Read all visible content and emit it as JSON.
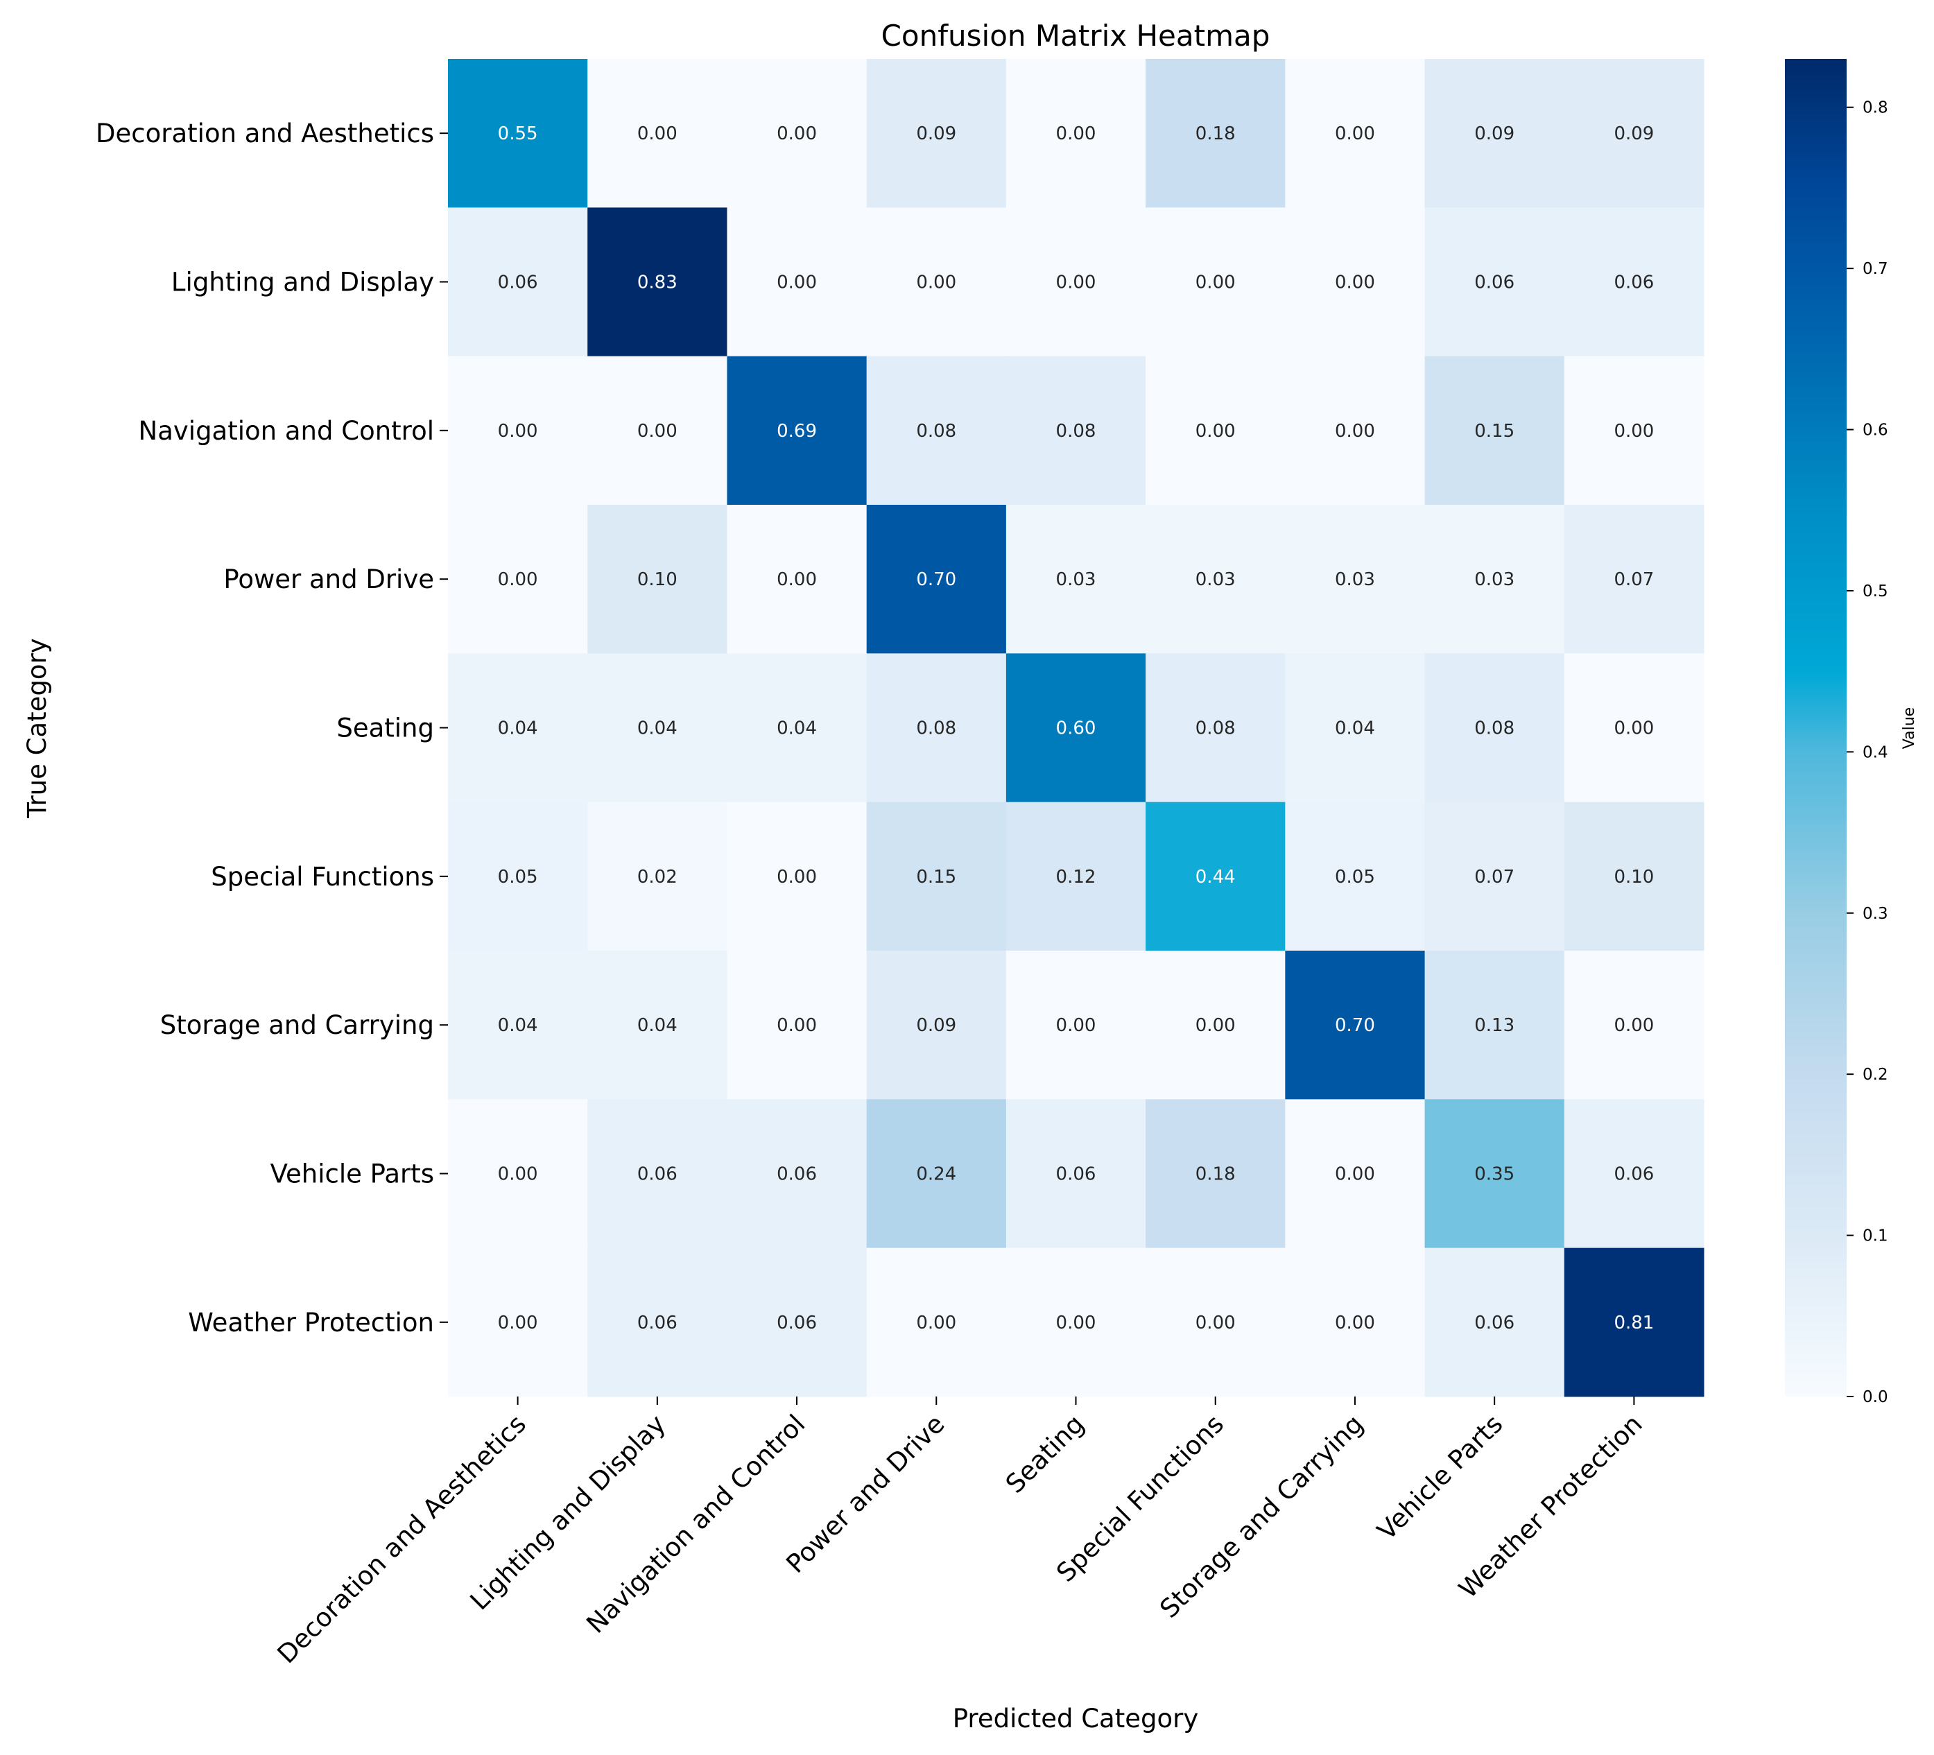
{
  "chart_data": {
    "type": "heatmap",
    "title": "Confusion Matrix Heatmap",
    "xlabel": "Predicted Category",
    "ylabel": "True Category",
    "categories": [
      "Decoration and Aesthetics",
      "Lighting and Display",
      "Navigation and Control",
      "Power and Drive",
      "Seating",
      "Special Functions",
      "Storage and Carrying",
      "Vehicle Parts",
      "Weather Protection"
    ],
    "values": [
      [
        0.55,
        0.0,
        0.0,
        0.09,
        0.0,
        0.18,
        0.0,
        0.09,
        0.09
      ],
      [
        0.06,
        0.83,
        0.0,
        0.0,
        0.0,
        0.0,
        0.0,
        0.06,
        0.06
      ],
      [
        0.0,
        0.0,
        0.69,
        0.08,
        0.08,
        0.0,
        0.0,
        0.15,
        0.0
      ],
      [
        0.0,
        0.1,
        0.0,
        0.7,
        0.03,
        0.03,
        0.03,
        0.03,
        0.07
      ],
      [
        0.04,
        0.04,
        0.04,
        0.08,
        0.6,
        0.08,
        0.04,
        0.08,
        0.0
      ],
      [
        0.05,
        0.02,
        0.0,
        0.15,
        0.12,
        0.44,
        0.05,
        0.07,
        0.1
      ],
      [
        0.04,
        0.04,
        0.0,
        0.09,
        0.0,
        0.0,
        0.7,
        0.13,
        0.0
      ],
      [
        0.0,
        0.06,
        0.06,
        0.24,
        0.06,
        0.18,
        0.0,
        0.35,
        0.06
      ],
      [
        0.0,
        0.06,
        0.06,
        0.0,
        0.0,
        0.0,
        0.0,
        0.06,
        0.81
      ]
    ],
    "colorbar": {
      "label": "Value",
      "range": [
        0.0,
        0.83
      ],
      "ticks": [
        "0.0",
        "0.1",
        "0.2",
        "0.3",
        "0.4",
        "0.5",
        "0.6",
        "0.7",
        "0.8"
      ]
    },
    "colormap_stops": [
      [
        0.0,
        "#f7fbff"
      ],
      [
        0.1,
        "#dceaf6"
      ],
      [
        0.2,
        "#c4dbef"
      ],
      [
        0.3,
        "#98cde4"
      ],
      [
        0.4,
        "#4fb8dc"
      ],
      [
        0.45,
        "#00a8d6"
      ],
      [
        0.55,
        "#008ec6"
      ],
      [
        0.65,
        "#0068b0"
      ],
      [
        0.75,
        "#00479a"
      ],
      [
        0.83,
        "#002a6a"
      ]
    ]
  }
}
